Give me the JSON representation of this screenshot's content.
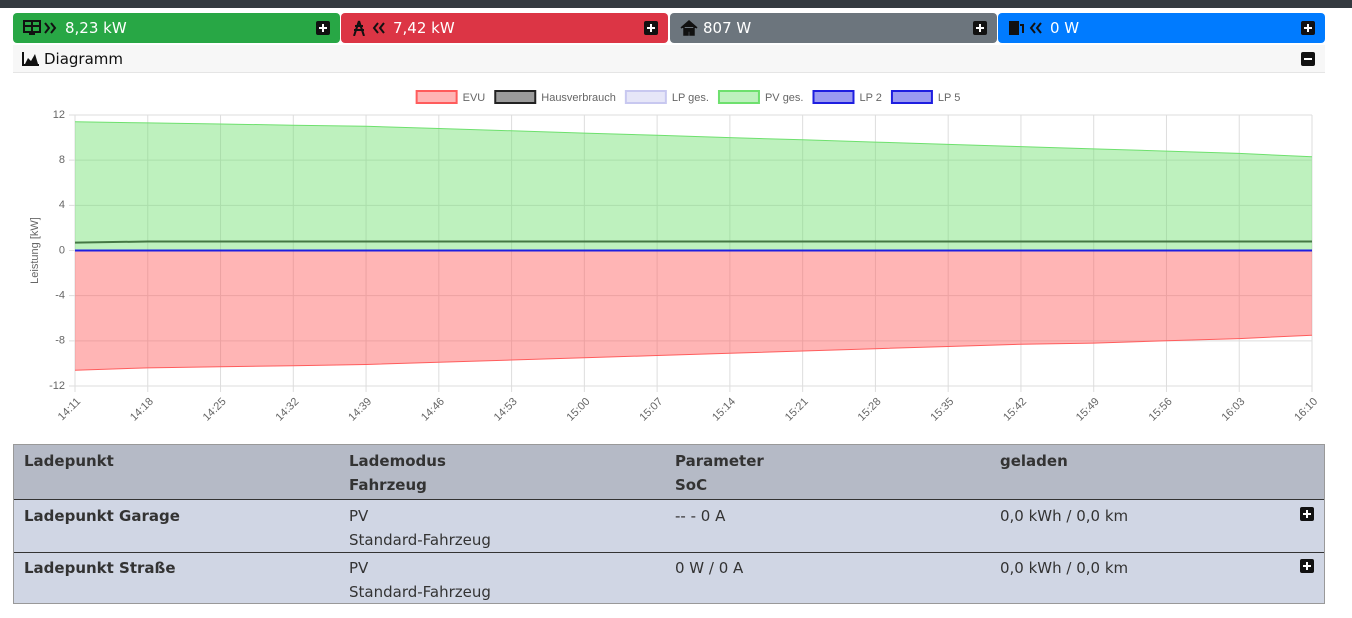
{
  "status": {
    "pv": "8,23 kW",
    "evu": "7,42 kW",
    "house": "807 W",
    "battery": "0 W"
  },
  "card": {
    "title": "Diagramm"
  },
  "chart_data": {
    "type": "area",
    "y_label": "Leistung [kW]",
    "categories": [
      "14:11",
      "14:18",
      "14:25",
      "14:32",
      "14:39",
      "14:46",
      "14:53",
      "15:00",
      "15:07",
      "15:14",
      "15:21",
      "15:28",
      "15:35",
      "15:42",
      "15:49",
      "15:56",
      "16:03",
      "16:10"
    ],
    "series": [
      {
        "name": "EVU",
        "color": "#ff5c5c",
        "fill": true,
        "values": [
          -10.6,
          -10.4,
          -10.3,
          -10.2,
          -10.1,
          -9.9,
          -9.7,
          -9.5,
          -9.3,
          -9.1,
          -8.9,
          -8.7,
          -8.5,
          -8.3,
          -8.2,
          -8.0,
          -7.8,
          -7.5
        ]
      },
      {
        "name": "Hausverbrauch",
        "color": "#222222",
        "fill": false,
        "values": [
          0.7,
          0.8,
          0.8,
          0.8,
          0.8,
          0.8,
          0.8,
          0.8,
          0.8,
          0.8,
          0.8,
          0.8,
          0.8,
          0.8,
          0.8,
          0.8,
          0.8,
          0.8
        ]
      },
      {
        "name": "LP ges.",
        "color": "#c8c8f0",
        "fill": false,
        "values": [
          0,
          0,
          0,
          0,
          0,
          0,
          0,
          0,
          0,
          0,
          0,
          0,
          0,
          0,
          0,
          0,
          0,
          0
        ]
      },
      {
        "name": "PV ges.",
        "color": "#6ee06e",
        "fill": true,
        "values": [
          11.4,
          11.3,
          11.2,
          11.1,
          11.0,
          10.8,
          10.6,
          10.4,
          10.2,
          10.0,
          9.8,
          9.6,
          9.4,
          9.2,
          9.0,
          8.8,
          8.6,
          8.3
        ]
      },
      {
        "name": "LP 2",
        "color": "#1e1ee0",
        "fill": false,
        "values": [
          0,
          0,
          0,
          0,
          0,
          0,
          0,
          0,
          0,
          0,
          0,
          0,
          0,
          0,
          0,
          0,
          0,
          0
        ]
      },
      {
        "name": "LP 5",
        "color": "#1e1ee0",
        "fill": false,
        "values": [
          0,
          0,
          0,
          0,
          0,
          0,
          0,
          0,
          0,
          0,
          0,
          0,
          0,
          0,
          0,
          0,
          0,
          0
        ]
      }
    ],
    "ylim": [
      -12,
      12
    ],
    "yticks": [
      -12,
      -8,
      -4,
      0,
      4,
      8,
      12
    ],
    "grid": true,
    "legend": "top"
  },
  "table": {
    "header": [
      [
        "Ladepunkt",
        ""
      ],
      [
        "Lademodus",
        "Fahrzeug"
      ],
      [
        "Parameter",
        "SoC"
      ],
      [
        "geladen",
        ""
      ]
    ],
    "rows": [
      [
        "Ladepunkt Garage",
        "PV",
        "Standard-Fahrzeug",
        "-- - 0 A",
        "0,0 kWh / 0,0 km"
      ],
      [
        "Ladepunkt Straße",
        "PV",
        "Standard-Fahrzeug",
        "0 W / 0 A",
        "0,0 kWh / 0,0 km"
      ]
    ]
  }
}
